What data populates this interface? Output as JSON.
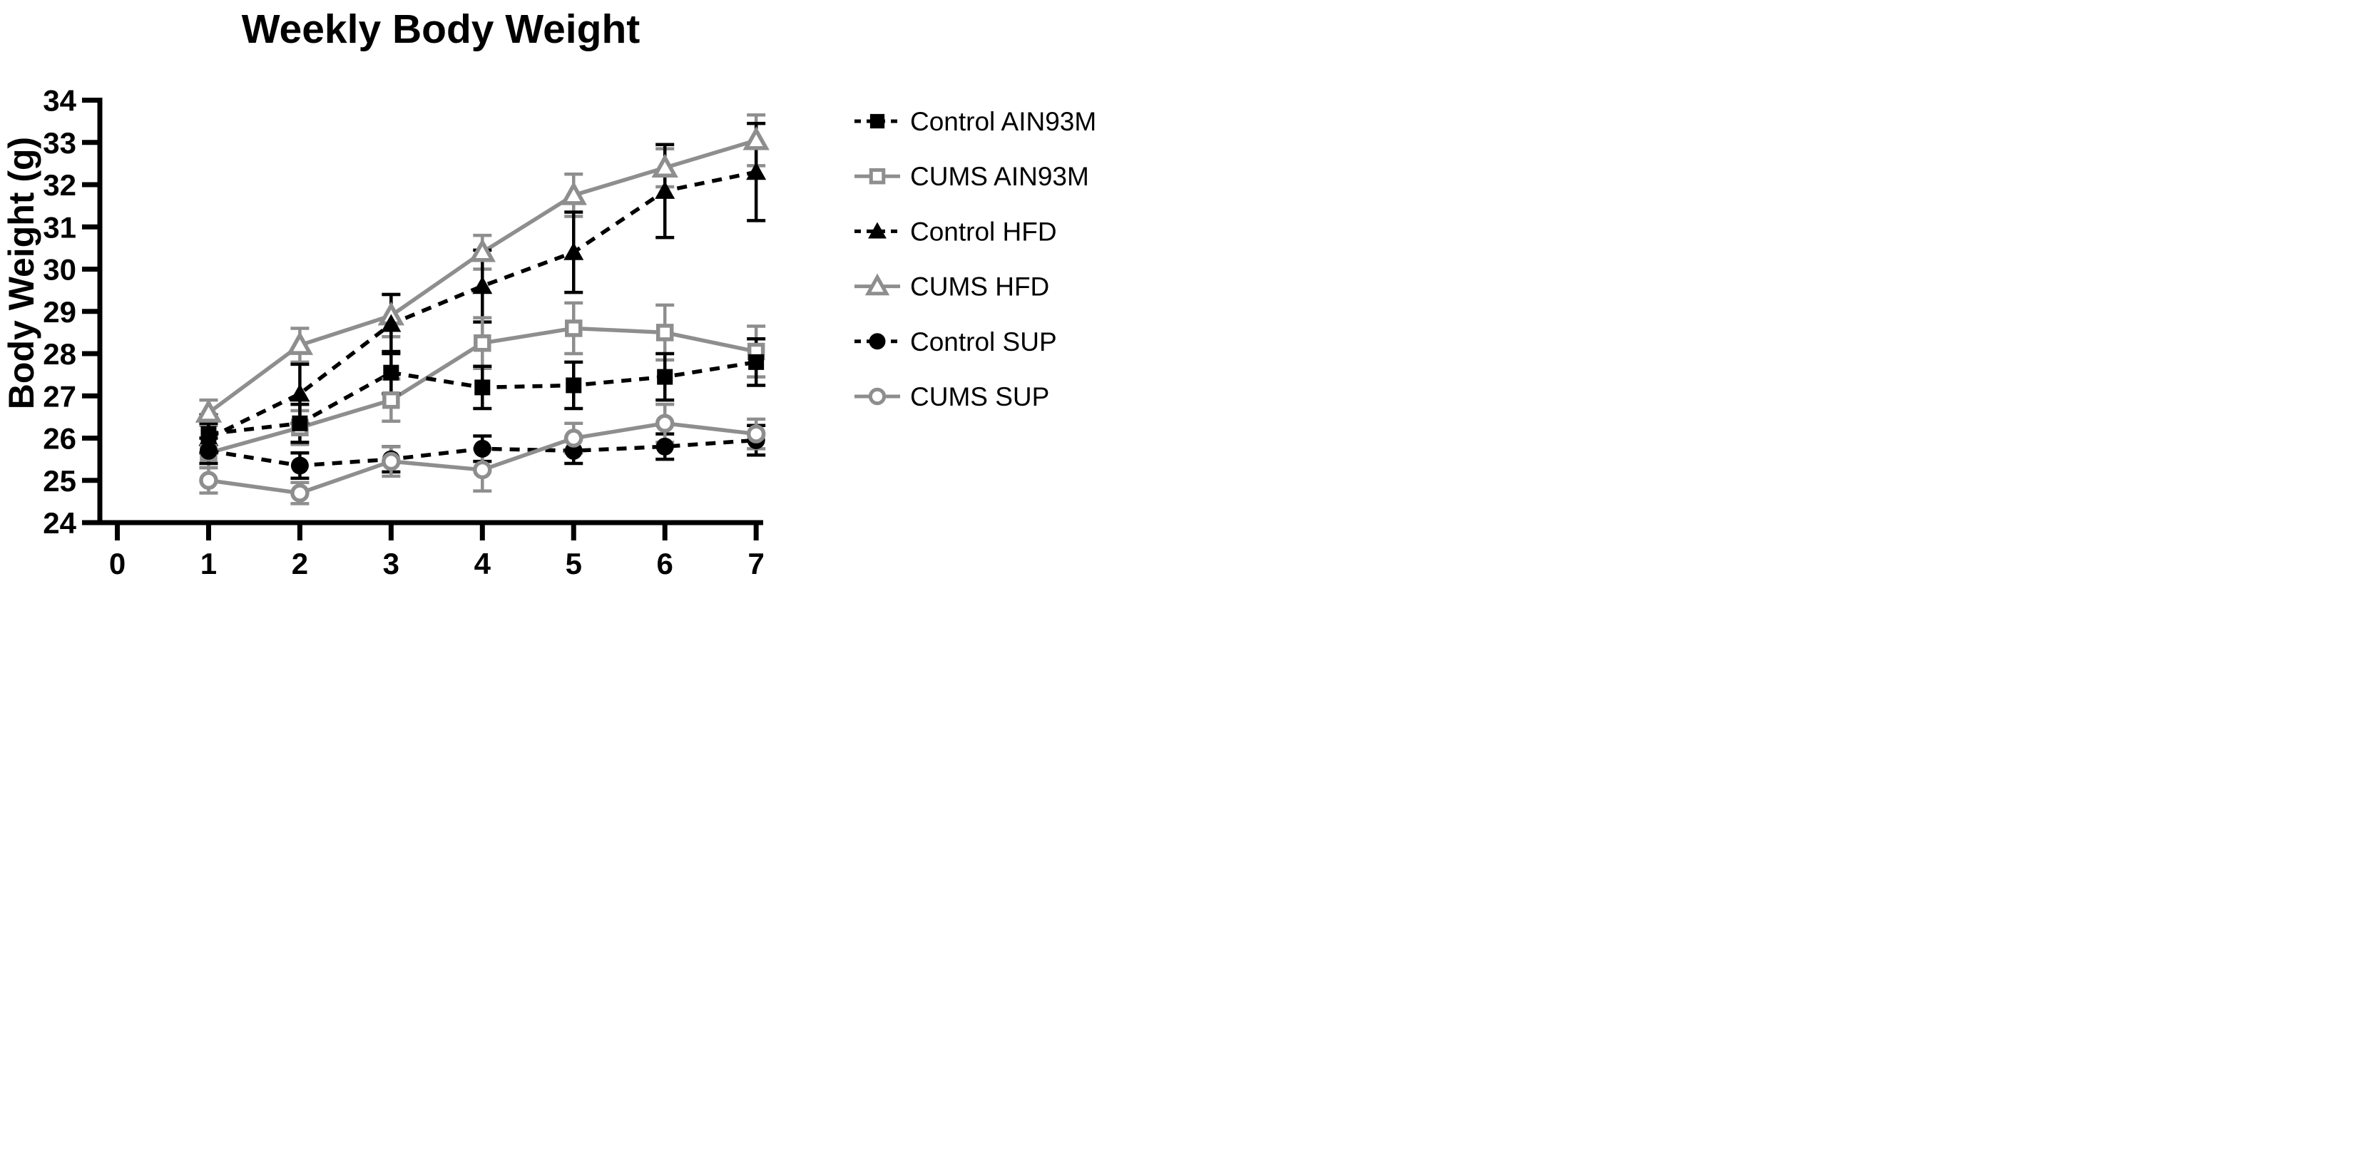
{
  "chart_data": {
    "type": "line",
    "title": "Weekly Body Weight",
    "ylabel": "Body Weight (g)",
    "xlabel": "",
    "x": [
      1,
      2,
      3,
      4,
      5,
      6,
      7
    ],
    "xticks": [
      0,
      1,
      2,
      3,
      4,
      5,
      6,
      7
    ],
    "yticks": [
      24,
      25,
      26,
      27,
      28,
      29,
      30,
      31,
      32,
      33,
      34
    ],
    "xlim": [
      0,
      7.2
    ],
    "ylim": [
      24,
      34
    ],
    "grid": false,
    "legend_position": "right",
    "colors": {
      "black": "#000000",
      "gray": "#8e8e8e"
    },
    "error_bars": true,
    "series": [
      {
        "name": "Control AIN93M",
        "marker": "square",
        "fill": "filled",
        "color": "black",
        "linestyle": "dashed",
        "values": [
          26.1,
          26.35,
          27.55,
          27.2,
          27.25,
          27.45,
          27.8
        ],
        "errors": [
          0.45,
          0.45,
          0.5,
          0.5,
          0.55,
          0.55,
          0.55
        ]
      },
      {
        "name": "CUMS AIN93M",
        "marker": "square",
        "fill": "open",
        "color": "gray",
        "linestyle": "solid",
        "values": [
          25.65,
          26.25,
          26.9,
          28.25,
          28.6,
          28.5,
          28.05
        ],
        "errors": [
          0.35,
          0.4,
          0.5,
          0.6,
          0.6,
          0.65,
          0.6
        ]
      },
      {
        "name": "Control HFD",
        "marker": "triangle",
        "fill": "filled",
        "color": "black",
        "linestyle": "dashed",
        "values": [
          26.0,
          27.05,
          28.7,
          29.6,
          30.4,
          31.85,
          32.3
        ],
        "errors": [
          0.35,
          0.7,
          0.7,
          0.85,
          0.95,
          1.1,
          1.15
        ]
      },
      {
        "name": "CUMS HFD",
        "marker": "triangle",
        "fill": "open",
        "color": "gray",
        "linestyle": "solid",
        "values": [
          26.6,
          28.2,
          28.9,
          30.4,
          31.75,
          32.4,
          33.05
        ],
        "errors": [
          0.3,
          0.4,
          0.5,
          0.4,
          0.5,
          0.45,
          0.6
        ]
      },
      {
        "name": "Control SUP",
        "marker": "circle",
        "fill": "filled",
        "color": "black",
        "linestyle": "dashed",
        "values": [
          25.7,
          25.35,
          25.5,
          25.75,
          25.7,
          25.8,
          25.95
        ],
        "errors": [
          0.3,
          0.3,
          0.3,
          0.3,
          0.3,
          0.3,
          0.35
        ]
      },
      {
        "name": "CUMS SUP",
        "marker": "circle",
        "fill": "open",
        "color": "gray",
        "linestyle": "solid",
        "values": [
          25.0,
          24.7,
          25.45,
          25.25,
          26.0,
          26.35,
          26.1
        ],
        "errors": [
          0.3,
          0.25,
          0.35,
          0.5,
          0.35,
          0.45,
          0.35
        ]
      }
    ],
    "draw_order": [
      3,
      2,
      1,
      0,
      4,
      5
    ]
  }
}
